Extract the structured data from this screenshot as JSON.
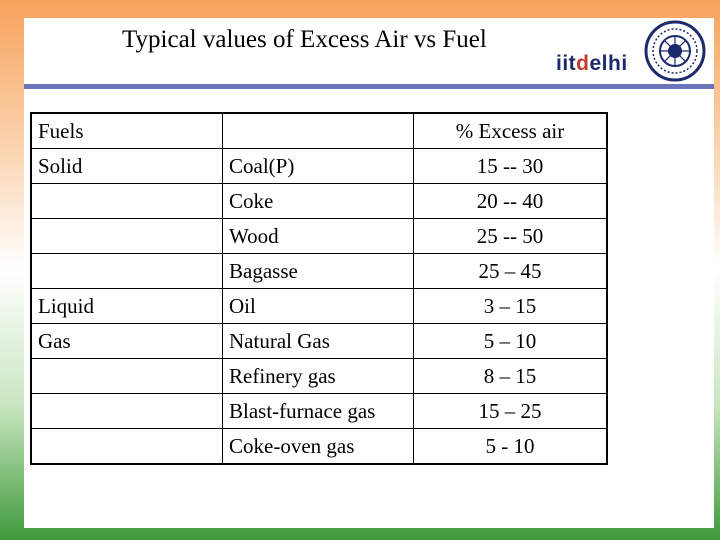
{
  "slide": {
    "title": "Typical values of Excess Air vs Fuel",
    "logo": {
      "iit": "iit",
      "d": "d",
      "elhi": "elhi"
    }
  },
  "table": {
    "headers": [
      "Fuels",
      "",
      "% Excess air"
    ],
    "rows": [
      [
        "Solid",
        "Coal(P)",
        "15 -- 30"
      ],
      [
        "",
        "Coke",
        "20 -- 40"
      ],
      [
        "",
        "Wood",
        "25  -- 50"
      ],
      [
        "",
        "Bagasse",
        "25 – 45"
      ],
      [
        "Liquid",
        "Oil",
        "3 – 15"
      ],
      [
        "Gas",
        "Natural Gas",
        "5 – 10"
      ],
      [
        "",
        "Refinery gas",
        "8 – 15"
      ],
      [
        "",
        "Blast-furnace gas",
        "15 – 25"
      ],
      [
        "",
        "Coke-oven gas",
        "5 - 10"
      ]
    ]
  }
}
